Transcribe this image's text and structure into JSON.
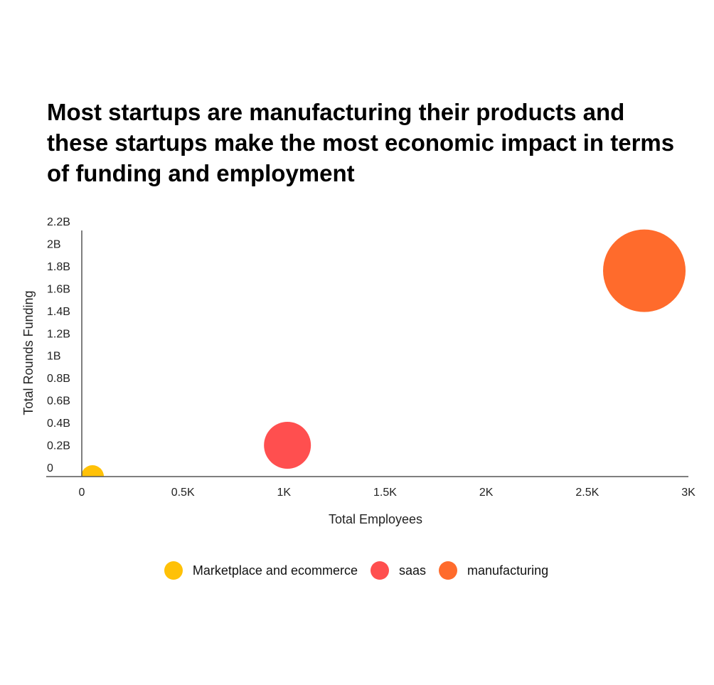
{
  "chart_data": {
    "type": "scatter",
    "subtype": "bubble",
    "title": "Most startups are manufacturing their products and these startups make the most economic impact in terms of funding and employment",
    "xlabel": "Total Employees",
    "ylabel": "Total Rounds Funding",
    "xlim": [
      0,
      3000
    ],
    "ylim": [
      0,
      2200000000
    ],
    "x_ticks": [
      0,
      500,
      1000,
      1500,
      2000,
      2500,
      3000
    ],
    "x_tick_labels": [
      "0",
      "0.5K",
      "1K",
      "1.5K",
      "2K",
      "2.5K",
      "3K"
    ],
    "y_ticks": [
      0,
      200000000,
      400000000,
      600000000,
      800000000,
      1000000000,
      1200000000,
      1400000000,
      1600000000,
      1800000000,
      2000000000,
      2200000000
    ],
    "y_tick_labels": [
      "0",
      "0.2B",
      "0.4B",
      "0.6B",
      "0.8B",
      "1B",
      "1.2B",
      "1.4B",
      "1.6B",
      "1.8B",
      "2B",
      "2.2B"
    ],
    "grid": false,
    "legend_position": "bottom",
    "series": [
      {
        "name": "Marketplace and ecommerce",
        "color": "#FFC107",
        "x": 53,
        "y": 0,
        "size": 16
      },
      {
        "name": "saas",
        "color": "#FF4F4F",
        "x": 1017,
        "y": 280000000,
        "size": 33
      },
      {
        "name": "manufacturing",
        "color": "#FF6B2C",
        "x": 2782,
        "y": 1840000000,
        "size": 58
      }
    ]
  }
}
